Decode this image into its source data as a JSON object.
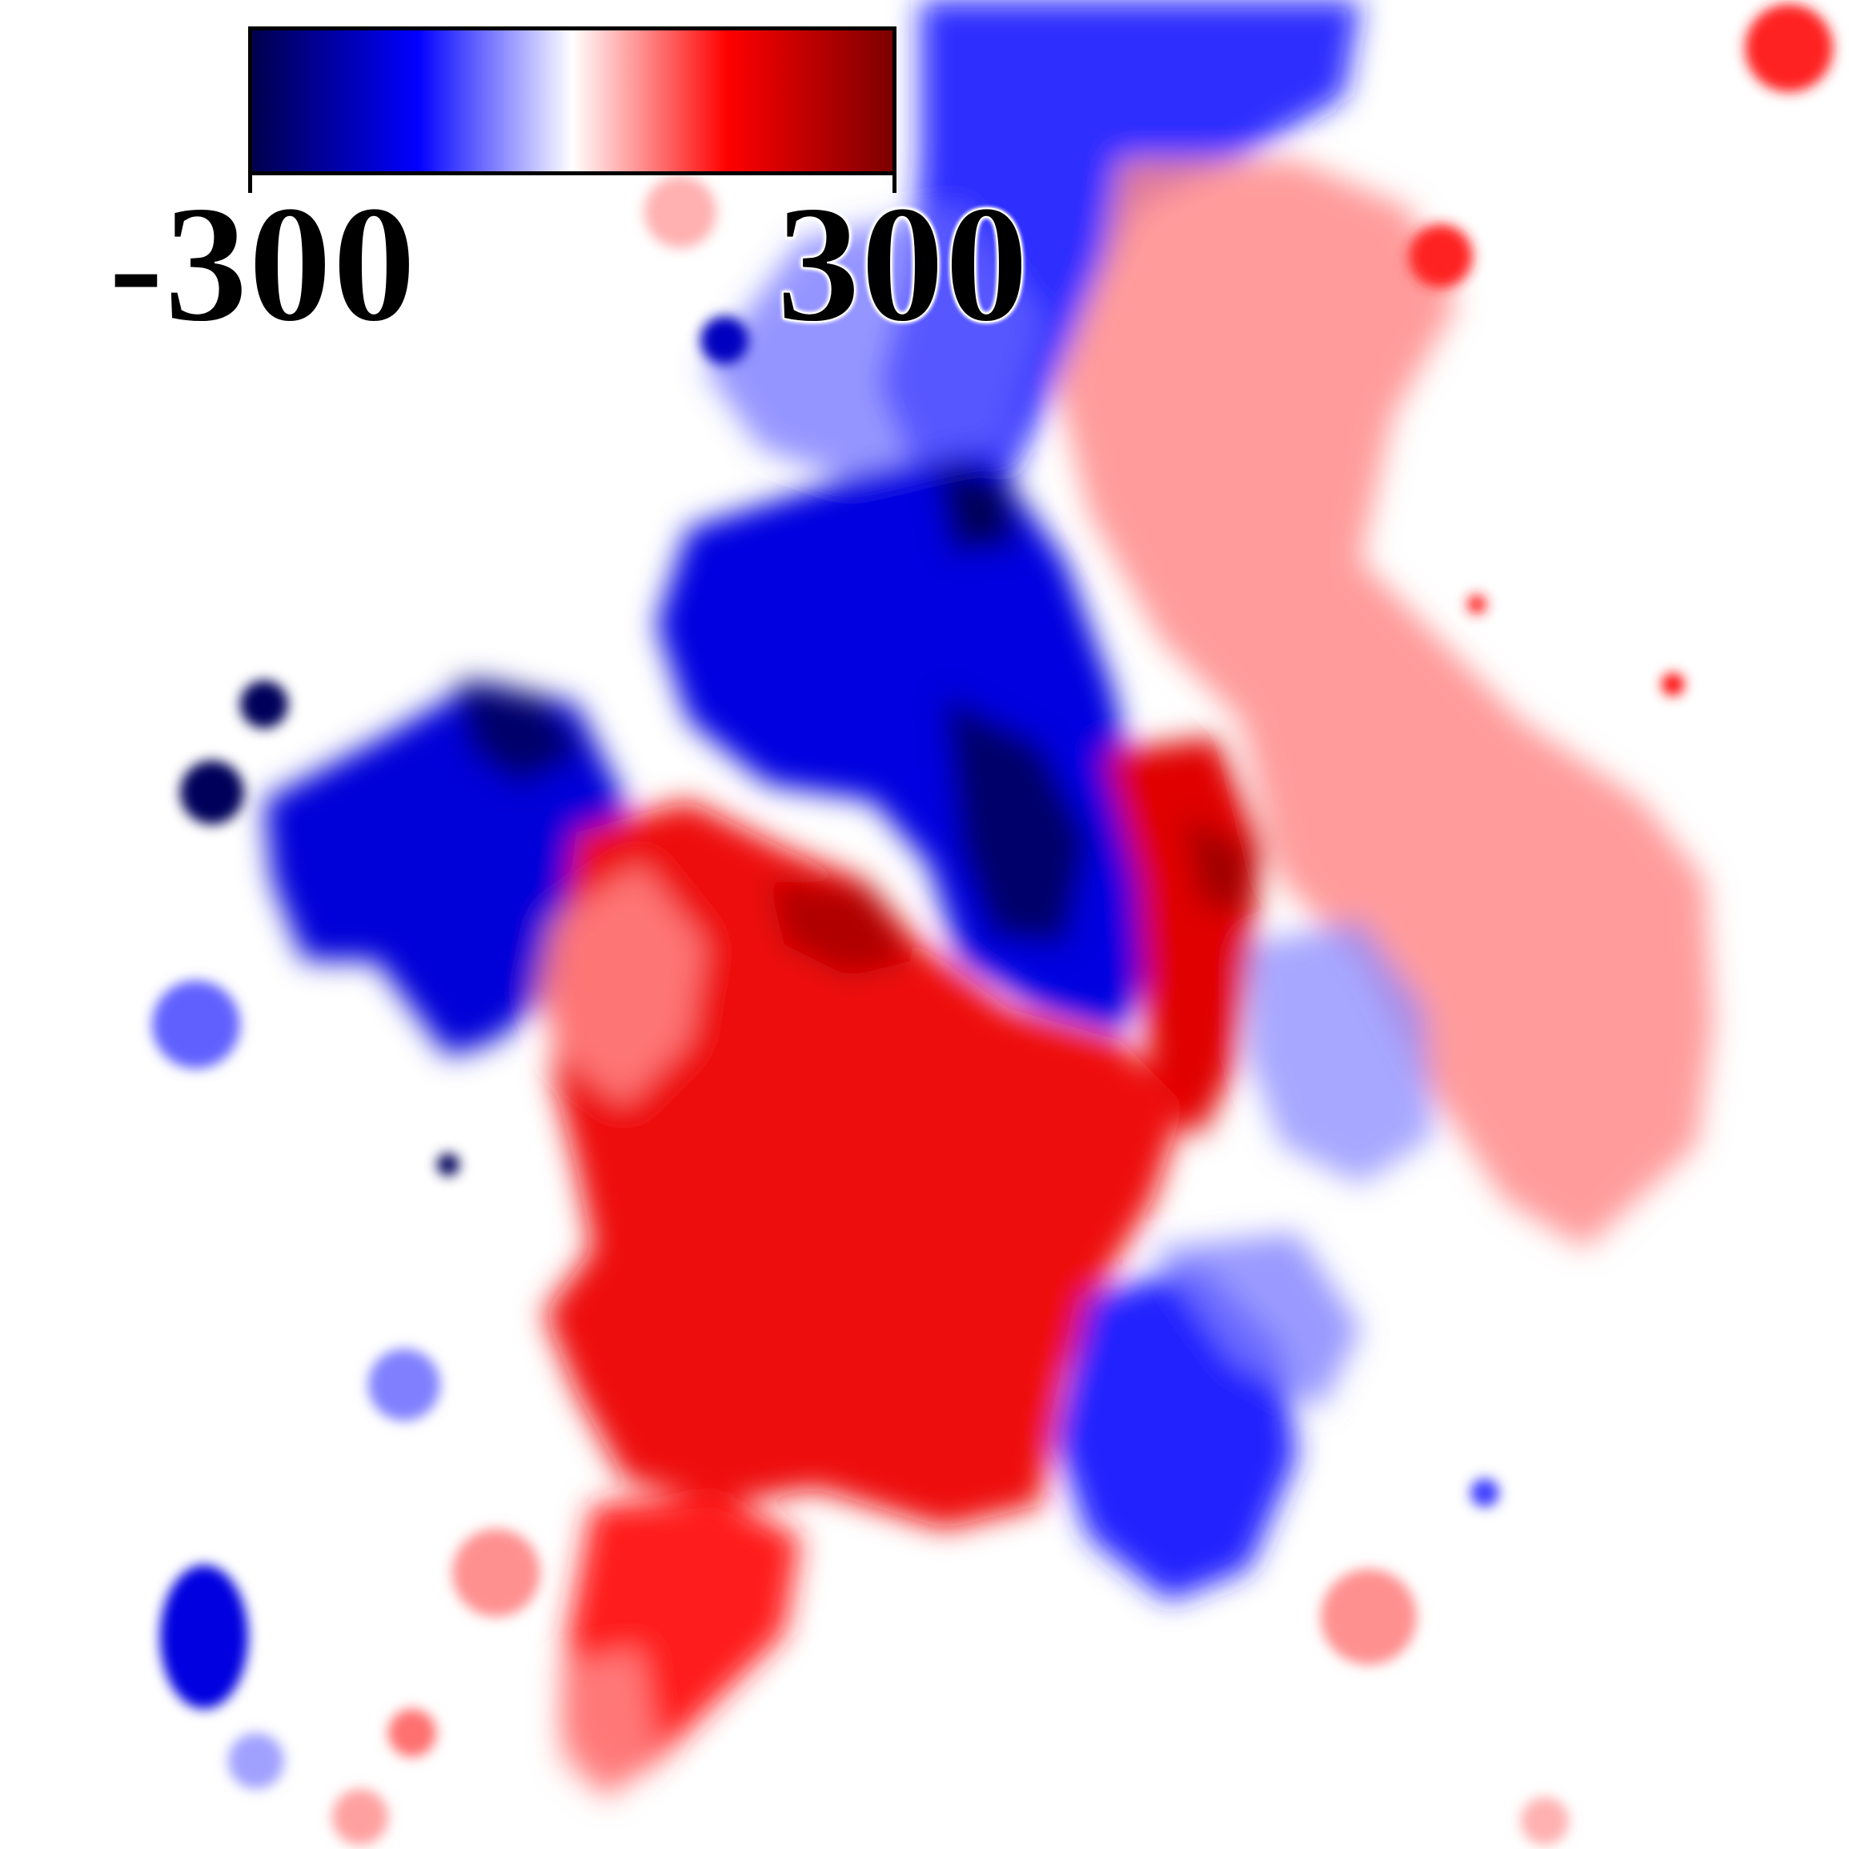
{
  "colorbar": {
    "min_label": "-300",
    "max_label": "300",
    "min_value": -300,
    "max_value": 300,
    "colors": [
      "#00004a",
      "#0000ff",
      "#ffffff",
      "#ff0000",
      "#7a0000"
    ]
  },
  "background_color": "#ffffff"
}
